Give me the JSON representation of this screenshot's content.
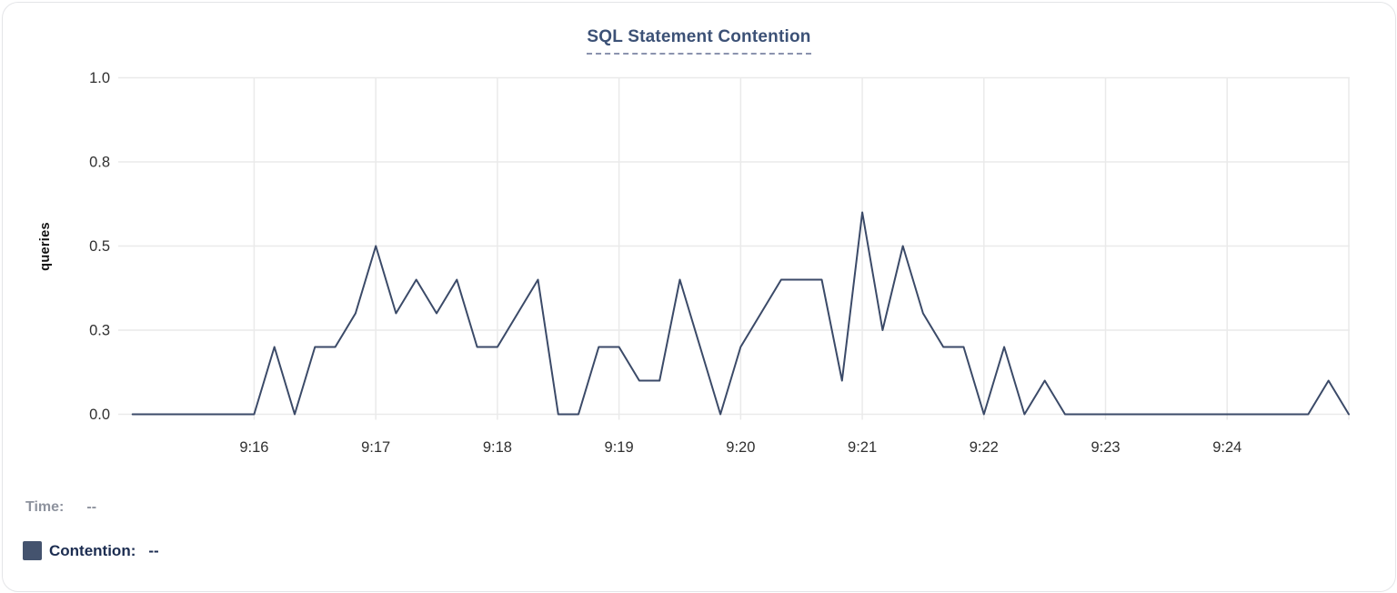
{
  "header": {
    "title": "SQL Statement Contention"
  },
  "legend": {
    "time_label": "Time:",
    "time_value": "--",
    "contention_label": "Contention:",
    "contention_value": "--",
    "swatch_color": "#44536e"
  },
  "chart_data": {
    "type": "line",
    "title": "SQL Statement Contention",
    "xlabel": "",
    "ylabel": "queries",
    "ylim": [
      0,
      1
    ],
    "grid": true,
    "legend_position": "bottom-left",
    "line_color": "#3b4a68",
    "grid_color": "#eaeaea",
    "tick_text_color": "#303030",
    "y_ticks": [
      {
        "value": 0,
        "label": "0.0"
      },
      {
        "value": 0.25,
        "label": "0.3"
      },
      {
        "value": 0.5,
        "label": "0.5"
      },
      {
        "value": 0.75,
        "label": "0.8"
      },
      {
        "value": 1.0,
        "label": "1.0"
      }
    ],
    "x_ticks": [
      {
        "time": "9:16:00",
        "label": "9:16"
      },
      {
        "time": "9:17:00",
        "label": "9:17"
      },
      {
        "time": "9:18:00",
        "label": "9:18"
      },
      {
        "time": "9:19:00",
        "label": "9:19"
      },
      {
        "time": "9:20:00",
        "label": "9:20"
      },
      {
        "time": "9:21:00",
        "label": "9:21"
      },
      {
        "time": "9:22:00",
        "label": "9:22"
      },
      {
        "time": "9:23:00",
        "label": "9:23"
      },
      {
        "time": "9:24:00",
        "label": "9:24"
      }
    ],
    "series": [
      {
        "name": "Contention",
        "unit": "queries",
        "x": [
          "9:15:00",
          "9:15:10",
          "9:15:20",
          "9:15:30",
          "9:15:40",
          "9:15:50",
          "9:16:00",
          "9:16:10",
          "9:16:20",
          "9:16:30",
          "9:16:40",
          "9:16:50",
          "9:17:00",
          "9:17:10",
          "9:17:20",
          "9:17:30",
          "9:17:40",
          "9:17:50",
          "9:18:00",
          "9:18:10",
          "9:18:20",
          "9:18:30",
          "9:18:40",
          "9:18:50",
          "9:19:00",
          "9:19:10",
          "9:19:20",
          "9:19:30",
          "9:19:40",
          "9:19:50",
          "9:20:00",
          "9:20:10",
          "9:20:20",
          "9:20:30",
          "9:20:40",
          "9:20:50",
          "9:21:00",
          "9:21:10",
          "9:21:20",
          "9:21:30",
          "9:21:40",
          "9:21:50",
          "9:22:00",
          "9:22:10",
          "9:22:20",
          "9:22:30",
          "9:22:40",
          "9:22:50",
          "9:23:00",
          "9:23:10",
          "9:23:20",
          "9:23:30",
          "9:23:40",
          "9:23:50",
          "9:24:00",
          "9:24:10",
          "9:24:20",
          "9:24:30",
          "9:24:40",
          "9:24:50",
          "9:25:00"
        ],
        "values": [
          0,
          0,
          0,
          0,
          0,
          0,
          0,
          0.2,
          0,
          0.2,
          0.2,
          0.3,
          0.5,
          0.3,
          0.4,
          0.3,
          0.4,
          0.2,
          0.2,
          0.3,
          0.4,
          0,
          0,
          0.2,
          0.2,
          0.1,
          0.1,
          0.4,
          0.2,
          0,
          0.2,
          0.3,
          0.4,
          0.4,
          0.4,
          0.1,
          0.6,
          0.25,
          0.5,
          0.3,
          0.2,
          0.2,
          0,
          0.2,
          0,
          0.1,
          0,
          0,
          0,
          0,
          0,
          0,
          0,
          0,
          0,
          0,
          0,
          0,
          0,
          0.1,
          0
        ]
      }
    ]
  }
}
